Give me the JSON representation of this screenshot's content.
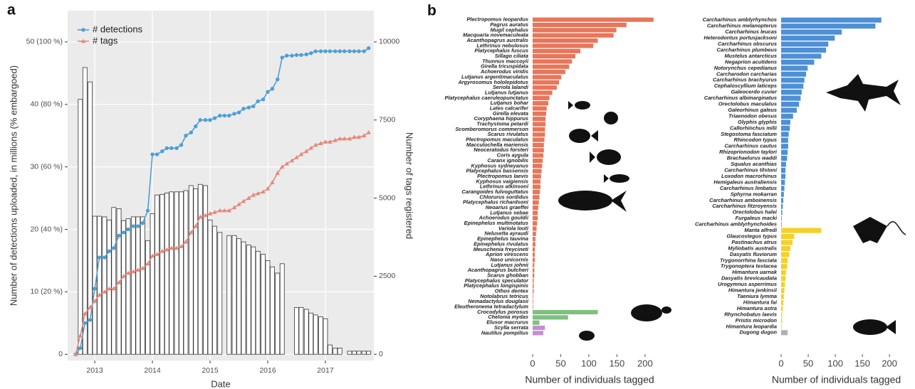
{
  "chart_data": [
    {
      "type": "combo",
      "label": "a",
      "x": [
        2012.67,
        2012.75,
        2012.83,
        2012.92,
        2013,
        2013.08,
        2013.17,
        2013.25,
        2013.33,
        2013.42,
        2013.5,
        2013.58,
        2013.67,
        2013.75,
        2013.83,
        2013.92,
        2014,
        2014.08,
        2014.17,
        2014.25,
        2014.33,
        2014.42,
        2014.5,
        2014.58,
        2014.67,
        2014.75,
        2014.83,
        2014.92,
        2015,
        2015.08,
        2015.17,
        2015.25,
        2015.33,
        2015.42,
        2015.5,
        2015.58,
        2015.67,
        2015.75,
        2015.83,
        2015.92,
        2016,
        2016.08,
        2016.17,
        2016.25,
        2016.33,
        2016.42,
        2016.5,
        2016.58,
        2016.67,
        2016.75,
        2016.83,
        2016.92,
        2017,
        2017.08,
        2017.17,
        2017.25,
        2017.33,
        2017.42,
        2017.5,
        2017.58,
        2017.67,
        2017.75
      ],
      "series": [
        {
          "type": "bar",
          "color": "#ffffff",
          "edgecolor": "#333333",
          "values": [
            null,
            40.8,
            45.9,
            43.6,
            22.1,
            22.1,
            22,
            21.5,
            23.5,
            23.3,
            21.4,
            21.7,
            22,
            22,
            22,
            18.2,
            22.5,
            25.5,
            25.6,
            25.8,
            26,
            26,
            26,
            26.2,
            27,
            26.5,
            27.2,
            27,
            21.5,
            20.5,
            19.5,
            null,
            19,
            19,
            18.5,
            18,
            17.5,
            17.2,
            16.5,
            16,
            15,
            14,
            13,
            14.5,
            null,
            null,
            7.5,
            7.5,
            7.2,
            6.6,
            6.3,
            6,
            5.7,
            1.5,
            1,
            1,
            null,
            0.5,
            0.5,
            0.5,
            0.5,
            0.5
          ]
        },
        {
          "type": "line",
          "name": "# detections",
          "marker": "circle",
          "color": "#4f9fd6",
          "values": [
            0,
            1,
            5,
            5.5,
            10.5,
            15.5,
            15.5,
            16.5,
            17,
            19,
            19.5,
            20,
            20.5,
            20.5,
            21,
            23,
            32,
            32,
            32.5,
            33,
            33,
            33,
            33.5,
            35,
            35.5,
            36.5,
            37.5,
            37.5,
            37.5,
            37.8,
            38.2,
            38.2,
            38.2,
            38.5,
            38.7,
            39.3,
            39.5,
            39.7,
            40.5,
            40.8,
            42,
            42.5,
            44,
            47.5,
            47.8,
            47.8,
            47.9,
            47.9,
            48,
            48.2,
            48.5,
            48.5,
            48.5,
            48.5,
            48.5,
            48.5,
            48.5,
            48.5,
            48.5,
            48.5,
            48.5,
            49
          ]
        },
        {
          "type": "line",
          "name": "# tags",
          "marker": "triangle",
          "color": "#e8877a",
          "axis": "y2",
          "values": [
            0,
            600,
            1300,
            1500,
            1700,
            1900,
            2000,
            2100,
            2100,
            2300,
            2500,
            2600,
            2650,
            2700,
            2750,
            2900,
            3150,
            3200,
            3300,
            3350,
            3400,
            3400,
            3450,
            3600,
            3900,
            4100,
            4400,
            4450,
            4500,
            4550,
            4600,
            4600,
            4600,
            4700,
            4800,
            4900,
            5000,
            5100,
            5150,
            5200,
            5300,
            5500,
            5800,
            6000,
            6100,
            6200,
            6300,
            6400,
            6500,
            6600,
            6700,
            6750,
            6800,
            6800,
            6850,
            6900,
            6900,
            6900,
            6950,
            6950,
            7000,
            7100
          ]
        }
      ],
      "xlabel": "Date",
      "ylabel": "Number of detections uploaded, in millions (% embargoed)",
      "y2label": "Number of tags registered",
      "xlim": [
        2012.53,
        2017.84
      ],
      "xticks": [
        2013,
        2014,
        2015,
        2016,
        2017
      ],
      "ylim": [
        -1,
        55
      ],
      "yticks": [
        0,
        {
          "value": 10,
          "label": "10 (20 %)"
        },
        {
          "value": 20,
          "label": "20 (40 %)"
        },
        {
          "value": 30,
          "label": "30 (60 %)"
        },
        {
          "value": 40,
          "label": "40 (80 %)"
        },
        {
          "value": 50,
          "label": "50 (100 %)"
        }
      ],
      "y2lim": [
        -200,
        11000
      ],
      "y2ticks": [
        0,
        2500,
        5000,
        7500,
        10000
      ],
      "grid": true,
      "legend": "upper left"
    },
    {
      "type": "barh",
      "label": "b",
      "xlabel": "Number of individuals tagged",
      "xlim": [
        0,
        228
      ],
      "xticks": [
        0,
        50,
        100,
        150,
        200
      ],
      "series": [
        {
          "color": "#e8765a",
          "categories": [
            "Plectropomus leopardus",
            "Pagrus auratus",
            "Mugil cephalus",
            "Macquaria novemaculeata",
            "Acanthopagrus australis",
            "Lethrinus nebulosus",
            "Platycephalus fuscus",
            "Sillago ciliata",
            "Thunnus maccoyii",
            "Girella tricuspidata",
            "Achoerodus viridis",
            "Lutjanus argentimaculatus",
            "Argyrosomus hololepidotus",
            "Seriola lalandi",
            "Lutjanus lutjanus",
            "Platycephalus caeruleopunctatus",
            "Lutjanus bohar",
            "Lates calcarifer",
            "Girella elevata",
            "Coryphaena hippurus",
            "Trachystoma petardi",
            "Scomberomorus commerson",
            "Scarus rivulatus",
            "Plectropomus maculatus",
            "Macculochella mariensis",
            "Neoceratodus forsteri",
            "Coris aygula",
            "Caranx ignobilis",
            "Kyphosus sydneyanus",
            "Platycephalus bassensis",
            "Plectropomus laevis",
            "Kyphosus vaigiensis",
            "Lethrinus atkinsoni",
            "Carangoides fulvoguttatus",
            "Chlorurus sordidus",
            "Platycephalus richardsoni",
            "Neoarius graeffei",
            "Lutjanus sebae",
            "Achoerodus gouldii",
            "Epinephelus multinotatus",
            "Variola louti",
            "Nelusetta ayraudi",
            "Epinephelus tauvina",
            "Epinephelus rivulatus",
            "Meuschenia freycineti",
            "Aprion virescens",
            "Naso unicornis",
            "Lutjanus johnii",
            "Acanthopagrus butcheri",
            "Scarus ghobban",
            "Platycephalus speculator",
            "Platycephalus longispinis",
            "Othos dentex",
            "Notolabrus tetricus",
            "Nemadactylus douglasii",
            "Eleutheronema tetradactylum"
          ],
          "values": [
            215,
            167,
            149,
            144,
            116,
            108,
            85,
            76,
            70,
            65,
            58,
            51,
            47,
            43,
            35,
            30,
            28,
            25,
            24,
            23,
            23,
            22,
            22,
            21,
            20,
            20,
            19,
            18,
            17,
            16,
            15,
            14,
            14,
            13,
            12,
            11,
            10,
            9,
            9,
            8,
            7,
            6,
            5,
            5,
            4,
            4,
            4,
            3,
            3,
            3,
            2,
            2,
            2,
            1,
            1,
            1
          ]
        },
        {
          "color": "#7fc07f",
          "categories": [
            "Crocodylus porosus",
            "Chelonia mydas",
            "Elusor macrurus"
          ],
          "values": [
            116,
            63,
            12
          ]
        },
        {
          "color": "#c58fd0",
          "categories": [
            "Scylla serrata",
            "Nautilus pompilius"
          ],
          "values": [
            22,
            19
          ]
        }
      ]
    },
    {
      "type": "barh",
      "xlabel": "Number of individuals tagged",
      "xlim": [
        0,
        230
      ],
      "xticks": [
        0,
        50,
        100,
        150,
        200
      ],
      "series": [
        {
          "color": "#4e8fd6",
          "categories": [
            "Carcharhinus amblyrhynchos",
            "Carcharhinus melanopterus",
            "Carcharhinus leucas",
            "Heterodontus portusjacksoni",
            "Carcharhinus obscurus",
            "Carcharhinus plumbeus",
            "Mustelus antarcticus",
            "Negaprion acutidens",
            "Notorynchus cepedianus",
            "Carcharodon carcharias",
            "Carcharhinus brachyurus",
            "Cephaloscyllium laticeps",
            "Galeocerdo cuvier",
            "Carcharhinus albimarginatus",
            "Orectolobus maculatus",
            "Galeorhinus galeus",
            "Triaenodon obesus",
            "Glyphis glyphis",
            "Callorhinchus milii",
            "Stegostoma fasciatum",
            "Rhincodon typus",
            "Carcharhinus cautus",
            "Rhizoprionodon taylori",
            "Brachaelurus waddi",
            "Squalus acanthias",
            "Carcharhinus tilstoni",
            "Loxodon macrorhinus",
            "Hemigaleus australiensis",
            "Carcharhinus limbatus",
            "Sphyrna mokarran",
            "Carcharhinus amboinensis",
            "Carcharhinus fitzroyensis",
            "Orectolobus halei",
            "Furgaleus macki",
            "Carcharhinus amblyrhynchoides"
          ],
          "values": [
            185,
            174,
            112,
            99,
            87,
            83,
            74,
            61,
            49,
            46,
            43,
            41,
            38,
            36,
            33,
            29,
            22,
            17,
            16,
            14,
            13,
            13,
            12,
            11,
            9,
            8,
            8,
            7,
            6,
            5,
            4,
            3,
            2,
            1,
            1
          ]
        },
        {
          "color": "#f5cf2a",
          "categories": [
            "Manta alfredi",
            "Glaucostegus typus",
            "Pastinachus atrus",
            "Myliobatis australis",
            "Dasyatis fluviorum",
            "Trygonorrhina fasciata",
            "Trygonoptera testacea",
            "Himantura uarnak",
            "Dasyatis brevicaudata",
            "Urogymnus asperrimus",
            "Himantura jenkinsii",
            "Taeniura lymma",
            "Himantura fai",
            "Himantura astra",
            "Rhynchobatus laevis",
            "Pristis microdon",
            "Himantura leopardia"
          ],
          "values": [
            74,
            24,
            21,
            17,
            15,
            12,
            11,
            9,
            8,
            7,
            6,
            5,
            4,
            3,
            2,
            2,
            1
          ]
        },
        {
          "color": "#b0b0b0",
          "categories": [
            "Dugong dugon"
          ],
          "values": [
            12
          ]
        }
      ]
    }
  ]
}
